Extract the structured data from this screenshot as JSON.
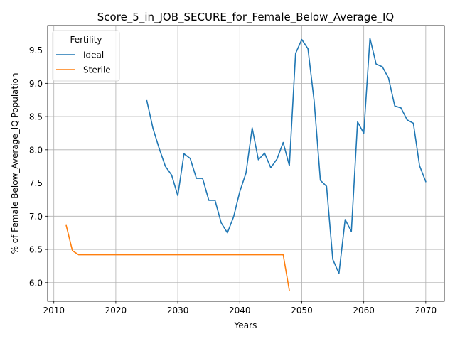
{
  "chart_data": {
    "type": "line",
    "title": "Score_5_in_JOB_SECURE_for_Female_Below_Average_IQ",
    "xlabel": "Years",
    "ylabel": "% of Female Below_Average_IQ Population",
    "xlim": [
      2009,
      2073
    ],
    "ylim": [
      5.72,
      9.87
    ],
    "xticks": [
      2010,
      2020,
      2030,
      2040,
      2050,
      2060,
      2070
    ],
    "yticks": [
      6.0,
      6.5,
      7.0,
      7.5,
      8.0,
      8.5,
      9.0,
      9.5
    ],
    "grid": true,
    "legend": {
      "title": "Fertility",
      "location": "top-left"
    },
    "series": [
      {
        "name": "Ideal",
        "color": "#1f77b4",
        "x": [
          2025,
          2026,
          2027,
          2028,
          2029,
          2030,
          2031,
          2032,
          2033,
          2034,
          2035,
          2036,
          2037,
          2038,
          2039,
          2040,
          2041,
          2042,
          2043,
          2044,
          2045,
          2046,
          2047,
          2048,
          2049,
          2050,
          2051,
          2052,
          2053,
          2054,
          2055,
          2056,
          2057,
          2058,
          2059,
          2060,
          2061,
          2062,
          2063,
          2064,
          2065,
          2066,
          2067,
          2068,
          2069,
          2070
        ],
        "y": [
          8.74,
          8.32,
          8.02,
          7.75,
          7.62,
          7.31,
          7.94,
          7.87,
          7.57,
          7.57,
          7.24,
          7.24,
          6.9,
          6.75,
          6.99,
          7.37,
          7.65,
          8.33,
          7.85,
          7.95,
          7.73,
          7.86,
          8.11,
          7.76,
          9.45,
          9.66,
          9.52,
          8.73,
          7.54,
          7.45,
          6.35,
          6.14,
          6.95,
          6.77,
          8.42,
          8.25,
          9.68,
          9.29,
          9.25,
          9.08,
          8.66,
          8.63,
          8.45,
          8.4,
          7.76,
          7.52
        ]
      },
      {
        "name": "Sterile",
        "color": "#ff7f0e",
        "x": [
          2012,
          2013,
          2014,
          2015,
          2016,
          2017,
          2018,
          2019,
          2020,
          2021,
          2022,
          2023,
          2024,
          2025,
          2026,
          2027,
          2028,
          2029,
          2030,
          2031,
          2032,
          2033,
          2034,
          2035,
          2036,
          2037,
          2038,
          2039,
          2040,
          2041,
          2042,
          2043,
          2044,
          2045,
          2046,
          2047,
          2048
        ],
        "y": [
          6.86,
          6.48,
          6.42,
          6.42,
          6.42,
          6.42,
          6.42,
          6.42,
          6.42,
          6.42,
          6.42,
          6.42,
          6.42,
          6.42,
          6.42,
          6.42,
          6.42,
          6.42,
          6.42,
          6.42,
          6.42,
          6.42,
          6.42,
          6.42,
          6.42,
          6.42,
          6.42,
          6.42,
          6.42,
          6.42,
          6.42,
          6.42,
          6.42,
          6.42,
          6.42,
          6.42,
          5.88
        ]
      }
    ]
  }
}
